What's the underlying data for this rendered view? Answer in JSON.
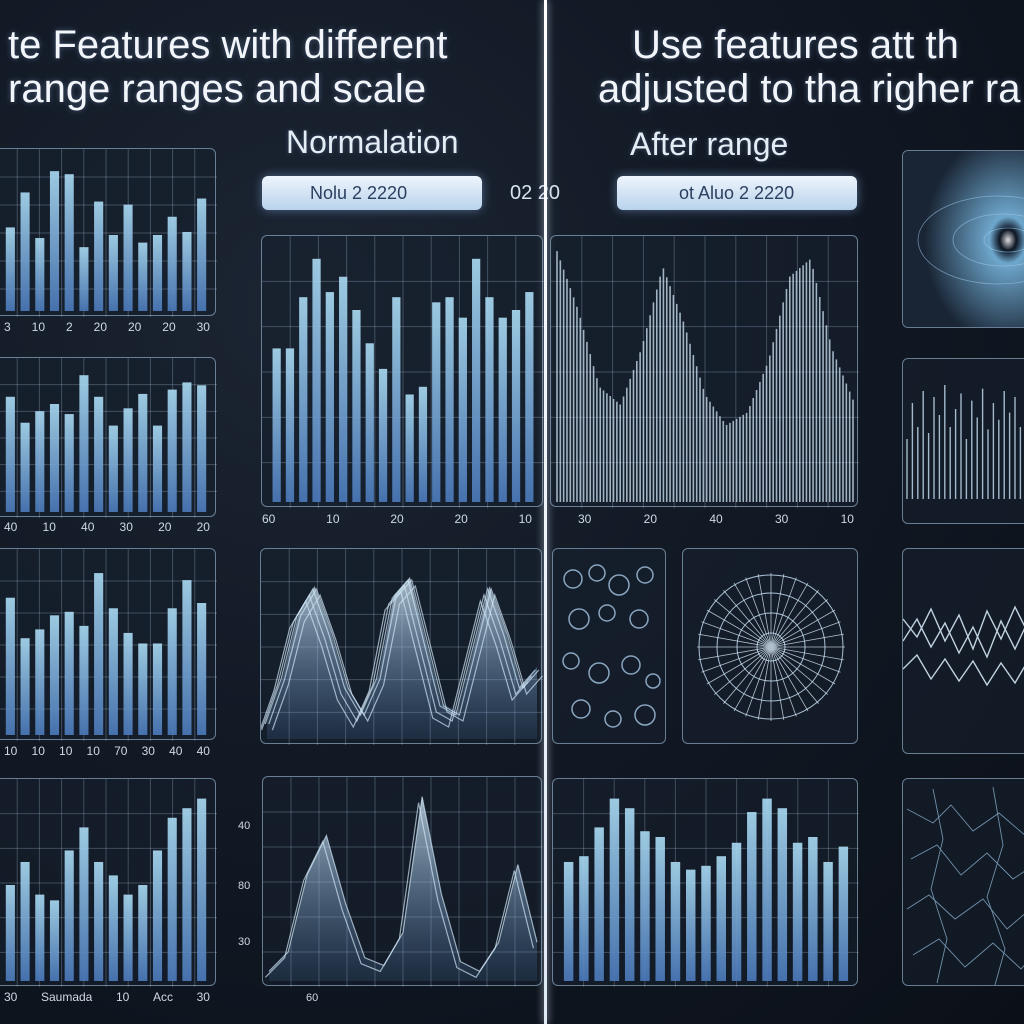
{
  "headings": {
    "left_line1": "te Features with different",
    "left_line2": "range ranges and scale",
    "right_line1": "Use features att th",
    "right_line2": "adjusted to tha righer ra",
    "sub_left": "Normalation",
    "sub_right": "After range"
  },
  "controls": {
    "pill_left": "Nolu 2 2220",
    "center_text": "02 20",
    "pill_right": "ot Aluo 2 2220"
  },
  "tick_labels": {
    "left_col_row1": [
      "3",
      "10",
      "2",
      "20",
      "20",
      "20",
      "30"
    ],
    "left_col_row2": [
      "40",
      "10",
      "40",
      "30",
      "20",
      "20"
    ],
    "left_col_row3": [
      "10",
      "10",
      "10",
      "10",
      "70",
      "30",
      "40",
      "40"
    ],
    "left_col_row4": [
      "30",
      "Saumada",
      "10",
      "Acc",
      "30"
    ],
    "main_panel_left": [
      "60",
      "10",
      "20",
      "20",
      "10"
    ],
    "main_panel_right": [
      "30",
      "20",
      "40",
      "30",
      "10"
    ],
    "bottom_side": [
      "40",
      "80",
      "30"
    ],
    "bottom_panel_tick": "60"
  },
  "chart_data": [
    {
      "type": "bar",
      "values": [
        0.55,
        0.78,
        0.48,
        0.92,
        0.9,
        0.42,
        0.72,
        0.5,
        0.7,
        0.45,
        0.5,
        0.62,
        0.52,
        0.74
      ]
    },
    {
      "type": "bar",
      "values": [
        0.8,
        0.62,
        0.7,
        0.75,
        0.68,
        0.95,
        0.8,
        0.6,
        0.72,
        0.82,
        0.6,
        0.85,
        0.9,
        0.88
      ]
    },
    {
      "type": "bar",
      "values": [
        0.78,
        0.55,
        0.6,
        0.68,
        0.7,
        0.62,
        0.92,
        0.72,
        0.58,
        0.52,
        0.52,
        0.72,
        0.88,
        0.75
      ]
    },
    {
      "type": "bar",
      "values": [
        0.5,
        0.62,
        0.45,
        0.42,
        0.68,
        0.8,
        0.62,
        0.55,
        0.45,
        0.5,
        0.68,
        0.85,
        0.9,
        0.95
      ]
    },
    {
      "type": "bar",
      "values": [
        0.6,
        0.6,
        0.8,
        0.95,
        0.82,
        0.88,
        0.75,
        0.62,
        0.52,
        0.8,
        0.42,
        0.45,
        0.78,
        0.8,
        0.72,
        0.95,
        0.8,
        0.72,
        0.75,
        0.82
      ]
    },
    {
      "type": "line",
      "values": [
        0.98,
        0.75,
        0.45,
        0.38,
        0.6,
        0.92,
        0.7,
        0.42,
        0.3,
        0.35,
        0.55,
        0.88,
        0.95,
        0.6,
        0.4
      ]
    },
    {
      "type": "area",
      "values": [
        0.1,
        0.35,
        0.7,
        0.85,
        0.6,
        0.3,
        0.15,
        0.35,
        0.8,
        0.9,
        0.55,
        0.2,
        0.15,
        0.5,
        0.85,
        0.6,
        0.3,
        0.4
      ]
    },
    {
      "type": "area",
      "values": [
        0.05,
        0.15,
        0.55,
        0.75,
        0.4,
        0.12,
        0.08,
        0.25,
        0.95,
        0.45,
        0.1,
        0.05,
        0.2,
        0.6,
        0.2
      ]
    },
    {
      "type": "bar",
      "values": [
        0.62,
        0.65,
        0.8,
        0.95,
        0.9,
        0.78,
        0.75,
        0.62,
        0.58,
        0.6,
        0.65,
        0.72,
        0.88,
        0.95,
        0.9,
        0.72,
        0.75,
        0.62,
        0.7
      ]
    }
  ],
  "colors": {
    "bar_top": "#a8d8f0",
    "bar_bottom": "#4a78b8",
    "line": "#cfe6f7",
    "accent": "#7fc8ec"
  }
}
